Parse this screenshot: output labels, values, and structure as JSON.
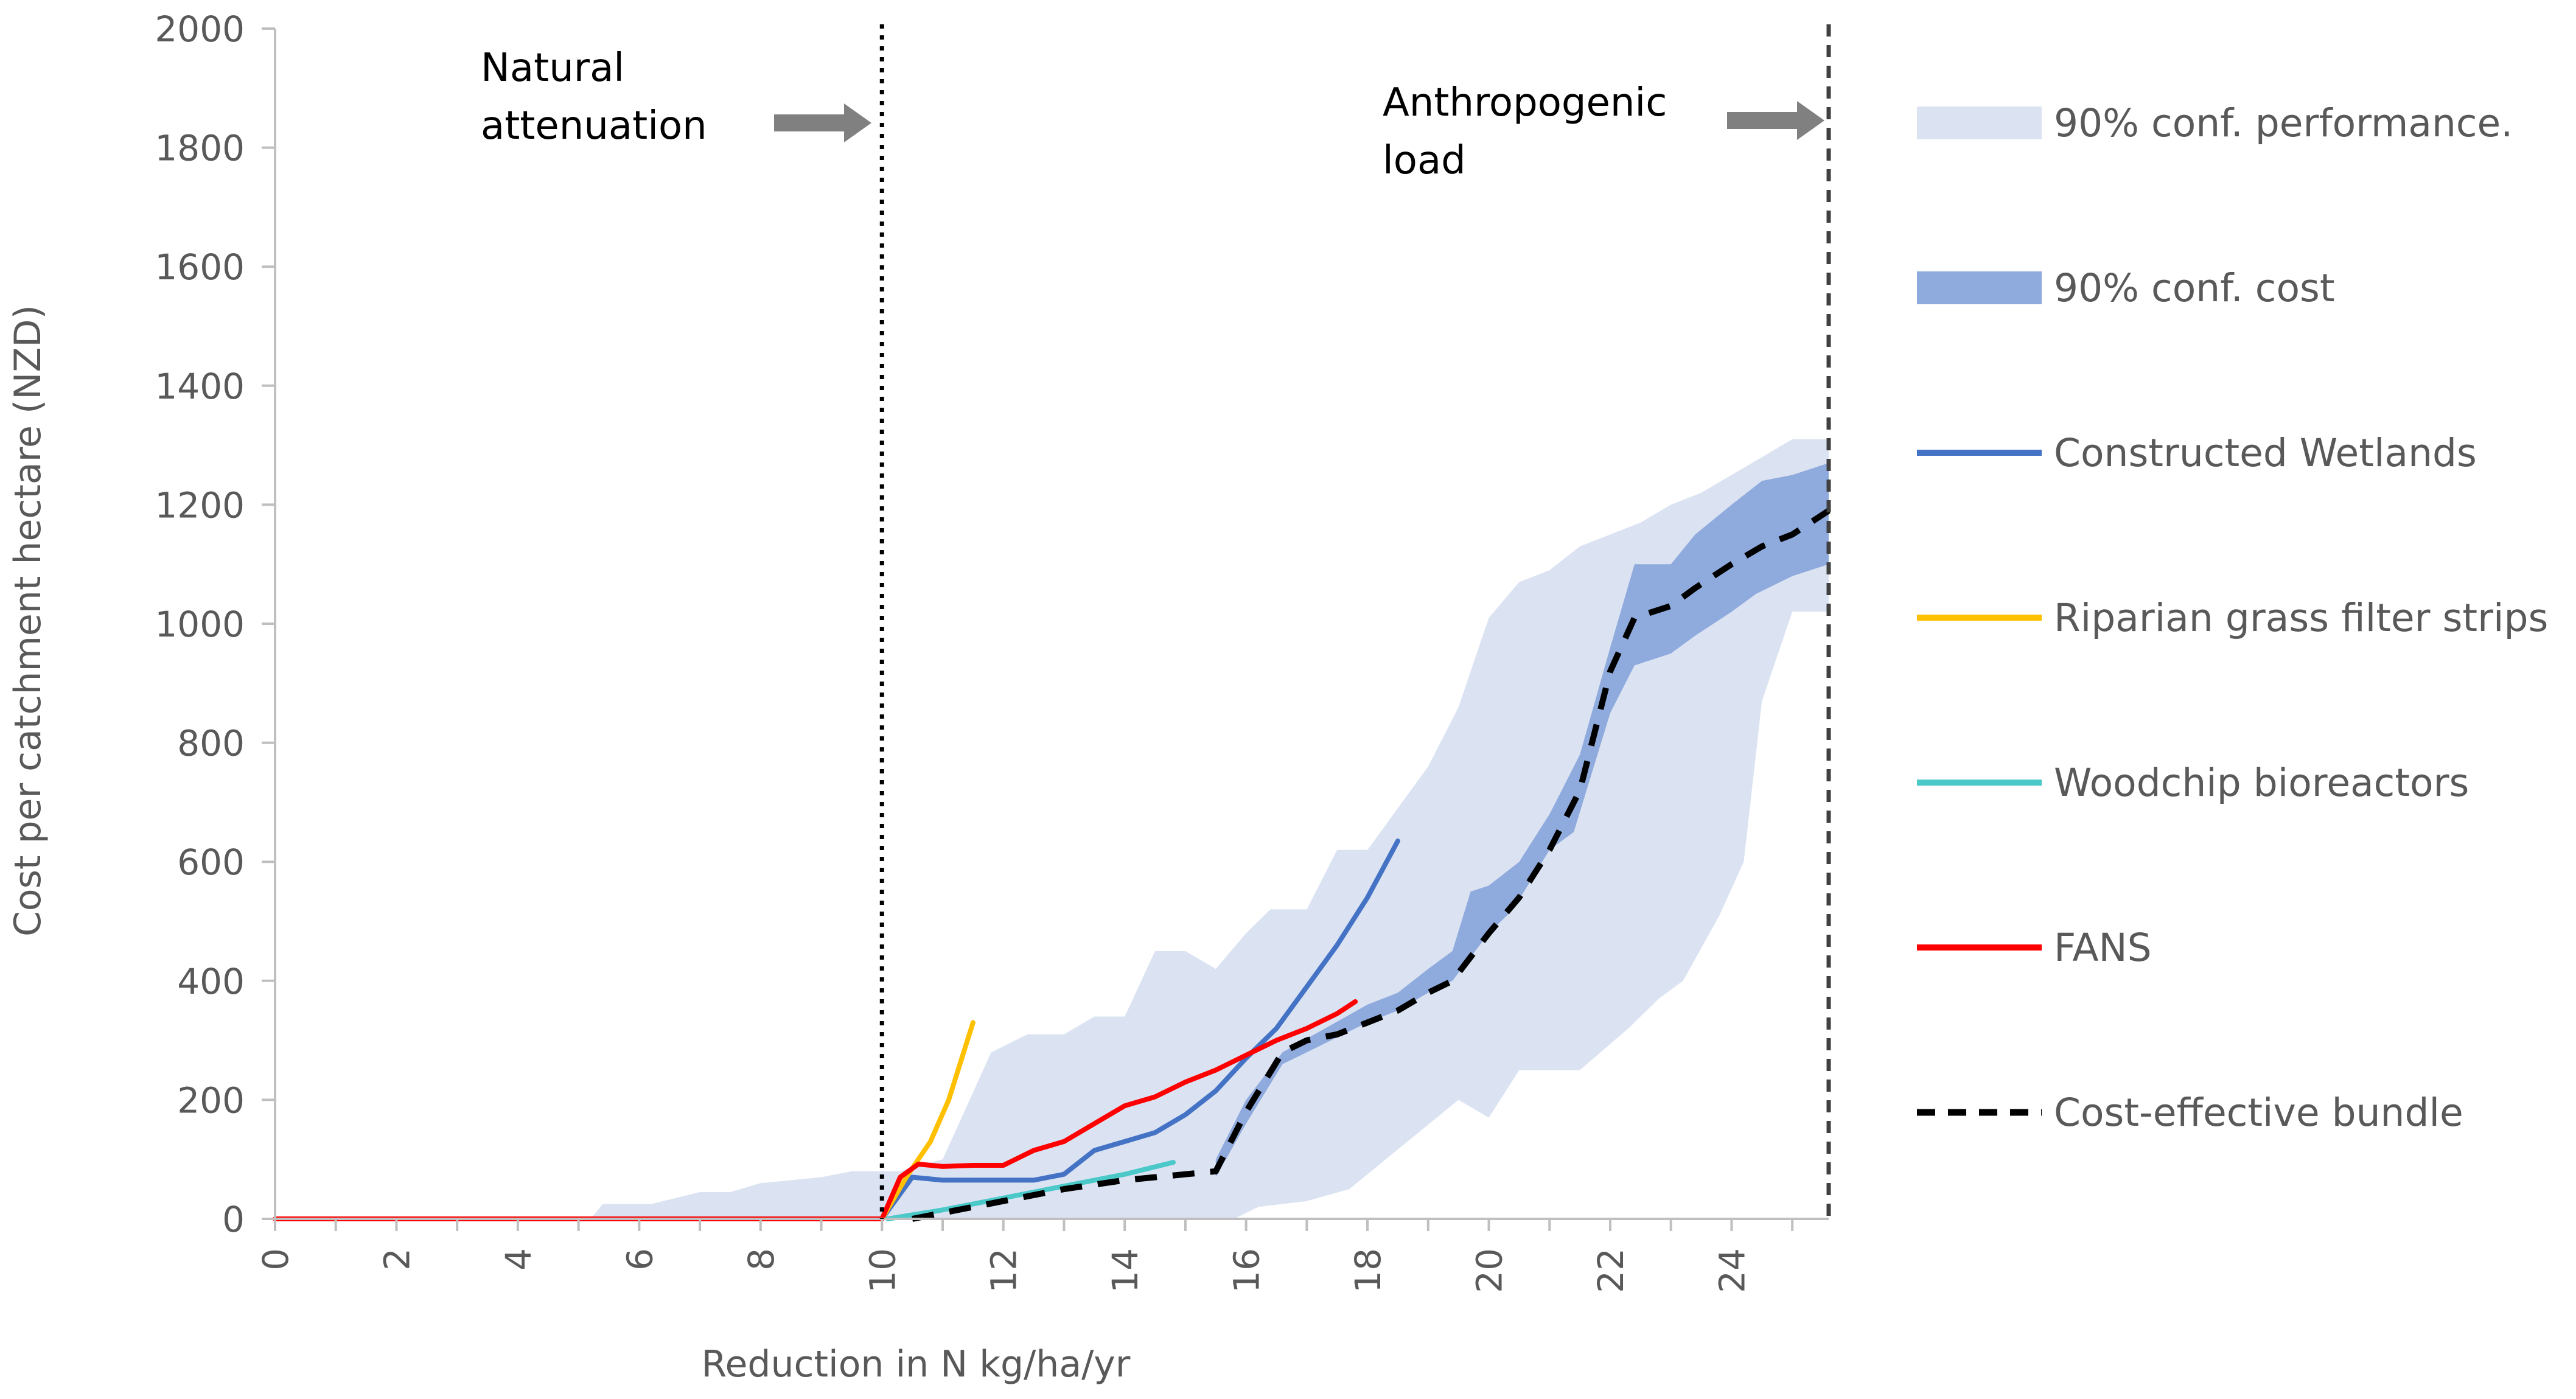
{
  "chart_data": {
    "type": "line",
    "xlabel": "Reduction in N kg/ha/yr",
    "ylabel": "Cost per catchment hectare (NZD)",
    "xlim": [
      0,
      25.6
    ],
    "ylim": [
      0,
      2000
    ],
    "x_ticks": [
      "0",
      "2",
      "4",
      "6",
      "8",
      "10",
      "12",
      "14",
      "16",
      "18",
      "20",
      "22",
      "24"
    ],
    "y_ticks": [
      "0",
      "200",
      "400",
      "600",
      "800",
      "1000",
      "1200",
      "1400",
      "1600",
      "1800",
      "2000"
    ],
    "grid": false,
    "annotations": {
      "natural": {
        "x": 10,
        "lines": [
          "Natural",
          "attenuation"
        ]
      },
      "anthropogenic": {
        "x": 25.6,
        "lines": [
          "Anthropogenic",
          "load"
        ]
      }
    },
    "colors": {
      "perf_band": "#dbe3f3",
      "cost_band": "#8faadc",
      "wetlands": "#4472c4",
      "riparian": "#ffc000",
      "woodchip": "#4bc8c8",
      "fans": "#ff0000",
      "bundle": "#000000",
      "axis": "#bfbfbf",
      "arrow": "#808080"
    },
    "legend": [
      {
        "key": "perf_band",
        "label": "90% conf. performance.",
        "kind": "band"
      },
      {
        "key": "cost_band",
        "label": "90% conf. cost",
        "kind": "band"
      },
      {
        "key": "wetlands",
        "label": "Constructed Wetlands",
        "kind": "line"
      },
      {
        "key": "riparian",
        "label": "Riparian grass filter strips",
        "kind": "line"
      },
      {
        "key": "woodchip",
        "label": "Woodchip bioreactors",
        "kind": "line"
      },
      {
        "key": "fans",
        "label": "FANS",
        "kind": "line"
      },
      {
        "key": "bundle",
        "label": "Cost-effective bundle",
        "kind": "dash"
      }
    ],
    "bands": {
      "performance": {
        "upper": [
          [
            0,
            0
          ],
          [
            5.2,
            0
          ],
          [
            5.4,
            25
          ],
          [
            6.2,
            25
          ],
          [
            7,
            45
          ],
          [
            7.5,
            45
          ],
          [
            8,
            60
          ],
          [
            9,
            70
          ],
          [
            9.5,
            80
          ],
          [
            10.3,
            80
          ],
          [
            10.6,
            90
          ],
          [
            11,
            100
          ],
          [
            11.8,
            280
          ],
          [
            12.4,
            310
          ],
          [
            13,
            310
          ],
          [
            13.5,
            340
          ],
          [
            14,
            340
          ],
          [
            14.5,
            450
          ],
          [
            15,
            450
          ],
          [
            15.5,
            420
          ],
          [
            16,
            480
          ],
          [
            16.4,
            520
          ],
          [
            17,
            520
          ],
          [
            17.5,
            620
          ],
          [
            18,
            620
          ],
          [
            19,
            760
          ],
          [
            19.5,
            860
          ],
          [
            20,
            1010
          ],
          [
            20.5,
            1070
          ],
          [
            21,
            1090
          ],
          [
            21.5,
            1130
          ],
          [
            22,
            1150
          ],
          [
            22.5,
            1170
          ],
          [
            23,
            1200
          ],
          [
            23.5,
            1220
          ],
          [
            24,
            1250
          ],
          [
            24.5,
            1280
          ],
          [
            25,
            1310
          ],
          [
            25.6,
            1310
          ]
        ],
        "lower": [
          [
            0,
            0
          ],
          [
            10,
            0
          ],
          [
            15.8,
            0
          ],
          [
            16.2,
            20
          ],
          [
            17,
            30
          ],
          [
            17.7,
            50
          ],
          [
            18.3,
            100
          ],
          [
            19.5,
            200
          ],
          [
            20,
            170
          ],
          [
            20.5,
            250
          ],
          [
            21,
            250
          ],
          [
            21.5,
            250
          ],
          [
            22.3,
            320
          ],
          [
            22.8,
            370
          ],
          [
            23.2,
            400
          ],
          [
            23.8,
            510
          ],
          [
            24.2,
            600
          ],
          [
            24.5,
            870
          ],
          [
            25,
            1020
          ],
          [
            25.6,
            1020
          ]
        ]
      },
      "cost": {
        "upper": [
          [
            15.5,
            100
          ],
          [
            16,
            200
          ],
          [
            16.6,
            280
          ],
          [
            18,
            360
          ],
          [
            18.5,
            380
          ],
          [
            19,
            420
          ],
          [
            19.4,
            450
          ],
          [
            19.7,
            550
          ],
          [
            20,
            560
          ],
          [
            20.5,
            600
          ],
          [
            21,
            680
          ],
          [
            21.5,
            780
          ],
          [
            22,
            960
          ],
          [
            22.4,
            1100
          ],
          [
            23,
            1100
          ],
          [
            23.4,
            1150
          ],
          [
            24,
            1200
          ],
          [
            24.5,
            1240
          ],
          [
            25,
            1250
          ],
          [
            25.6,
            1270
          ]
        ],
        "lower": [
          [
            25.6,
            1100
          ],
          [
            25,
            1080
          ],
          [
            24.4,
            1050
          ],
          [
            24,
            1020
          ],
          [
            23.4,
            980
          ],
          [
            23,
            950
          ],
          [
            22.4,
            930
          ],
          [
            22,
            850
          ],
          [
            21.4,
            650
          ],
          [
            21,
            620
          ],
          [
            20.4,
            520
          ],
          [
            20,
            480
          ],
          [
            19.4,
            400
          ],
          [
            19,
            380
          ],
          [
            18.5,
            350
          ],
          [
            18,
            330
          ],
          [
            16.6,
            260
          ],
          [
            16,
            160
          ],
          [
            15.5,
            70
          ]
        ]
      }
    },
    "series": [
      {
        "name": "Constructed Wetlands",
        "color_key": "wetlands",
        "points": [
          [
            10,
            0
          ],
          [
            10.5,
            70
          ],
          [
            11,
            65
          ],
          [
            11.5,
            65
          ],
          [
            12,
            65
          ],
          [
            12.5,
            65
          ],
          [
            13,
            75
          ],
          [
            13.5,
            115
          ],
          [
            14,
            130
          ],
          [
            14.5,
            145
          ],
          [
            15,
            175
          ],
          [
            15.5,
            215
          ],
          [
            16,
            270
          ],
          [
            16.5,
            320
          ],
          [
            17,
            390
          ],
          [
            17.5,
            460
          ],
          [
            18,
            540
          ],
          [
            18.5,
            635
          ]
        ]
      },
      {
        "name": "Riparian grass filter strips",
        "color_key": "riparian",
        "points": [
          [
            10,
            0
          ],
          [
            10.4,
            70
          ],
          [
            10.8,
            130
          ],
          [
            11.1,
            200
          ],
          [
            11.5,
            330
          ]
        ]
      },
      {
        "name": "Woodchip bioreactors",
        "color_key": "woodchip",
        "points": [
          [
            10.1,
            0
          ],
          [
            11,
            15
          ],
          [
            12,
            35
          ],
          [
            13,
            55
          ],
          [
            14,
            75
          ],
          [
            14.8,
            95
          ]
        ]
      },
      {
        "name": "FANS",
        "color_key": "fans",
        "points": [
          [
            0,
            0
          ],
          [
            9.8,
            0
          ],
          [
            10,
            0
          ],
          [
            10.3,
            70
          ],
          [
            10.6,
            92
          ],
          [
            11,
            88
          ],
          [
            11.5,
            90
          ],
          [
            12,
            90
          ],
          [
            12.5,
            115
          ],
          [
            13,
            130
          ],
          [
            13.5,
            160
          ],
          [
            14,
            190
          ],
          [
            14.5,
            205
          ],
          [
            15,
            230
          ],
          [
            15.5,
            250
          ],
          [
            16,
            275
          ],
          [
            16.5,
            300
          ],
          [
            17,
            320
          ],
          [
            17.5,
            345
          ],
          [
            17.8,
            365
          ]
        ]
      },
      {
        "name": "Cost-effective bundle",
        "color_key": "bundle",
        "dashed": true,
        "points": [
          [
            10.5,
            0
          ],
          [
            11,
            10
          ],
          [
            12,
            30
          ],
          [
            13,
            50
          ],
          [
            14,
            65
          ],
          [
            15,
            75
          ],
          [
            15.5,
            80
          ],
          [
            16,
            180
          ],
          [
            16.6,
            280
          ],
          [
            17,
            300
          ],
          [
            17.5,
            310
          ],
          [
            18,
            330
          ],
          [
            18.5,
            350
          ],
          [
            19,
            380
          ],
          [
            19.4,
            400
          ],
          [
            19.7,
            440
          ],
          [
            20,
            480
          ],
          [
            20.5,
            540
          ],
          [
            21,
            620
          ],
          [
            21.5,
            720
          ],
          [
            22,
            920
          ],
          [
            22.4,
            1010
          ],
          [
            23,
            1030
          ],
          [
            23.4,
            1060
          ],
          [
            24,
            1100
          ],
          [
            24.5,
            1130
          ],
          [
            25,
            1150
          ],
          [
            25.6,
            1190
          ]
        ]
      }
    ]
  }
}
